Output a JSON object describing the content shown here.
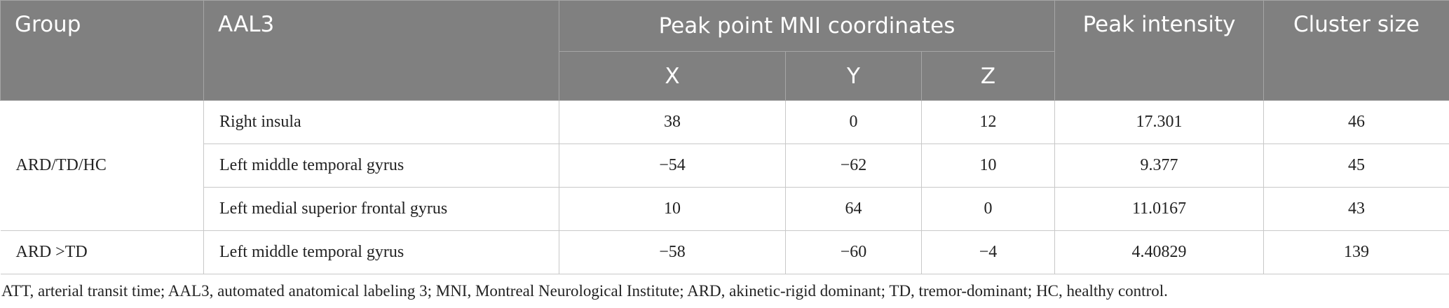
{
  "table": {
    "header": [
      "Group",
      "AAL3",
      "Peak point MNI coordinates",
      "Peak intensity",
      "Cluster size"
    ],
    "subheader": [
      "X",
      "Y",
      "Z"
    ],
    "groups": [
      {
        "label": "ARD/TD/HC",
        "rows": [
          [
            "Right insula",
            "38",
            "0",
            "12",
            "17.301",
            "46"
          ],
          [
            "Left middle temporal gyrus",
            "−54",
            "−62",
            "10",
            "9.377",
            "45"
          ],
          [
            "Left medial superior frontal gyrus",
            "10",
            "64",
            "0",
            "11.0167",
            "43"
          ]
        ]
      },
      {
        "label": "ARD >TD",
        "rows": [
          [
            "Left middle temporal gyrus",
            "−58",
            "−60",
            "−4",
            "4.40829",
            "139"
          ]
        ]
      }
    ]
  },
  "footnote": "ATT, arterial transit time; AAL3, automated anatomical labeling 3; MNI, Montreal Neurological Institute; ARD, akinetic-rigid dominant; TD, tremor-dominant; HC, healthy control."
}
